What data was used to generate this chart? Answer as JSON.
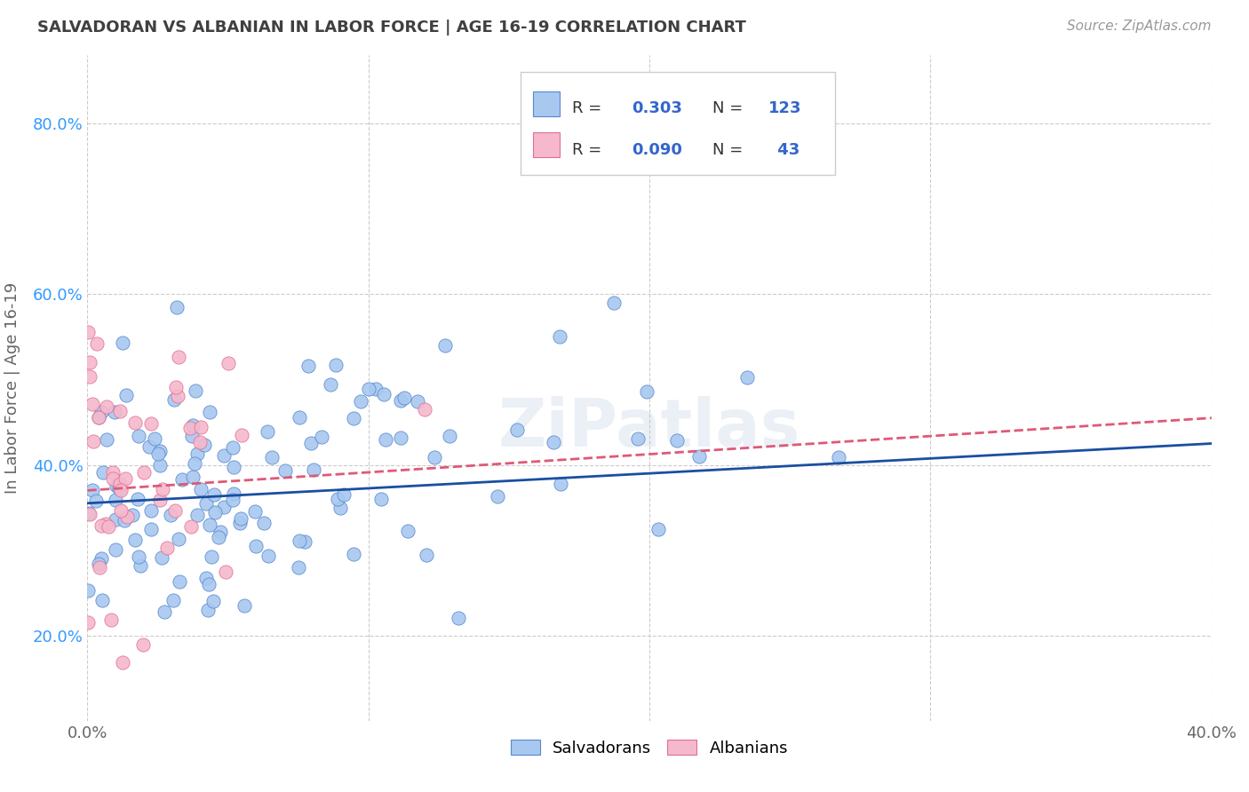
{
  "title": "SALVADORAN VS ALBANIAN IN LABOR FORCE | AGE 16-19 CORRELATION CHART",
  "source": "Source: ZipAtlas.com",
  "ylabel": "In Labor Force | Age 16-19",
  "watermark": "ZiPatlas",
  "xmin": 0.0,
  "xmax": 0.4,
  "ymin": 0.1,
  "ymax": 0.88,
  "yticks": [
    0.2,
    0.4,
    0.6,
    0.8
  ],
  "ytick_labels": [
    "20.0%",
    "40.0%",
    "60.0%",
    "80.0%"
  ],
  "xticks": [
    0.0,
    0.1,
    0.2,
    0.3,
    0.4
  ],
  "xtick_labels": [
    "0.0%",
    "",
    "",
    "",
    "40.0%"
  ],
  "salv_color": "#a8c8f0",
  "salv_edge_color": "#5588cc",
  "salv_line_color": "#1a4fa0",
  "alb_color": "#f5b8cc",
  "alb_edge_color": "#e07090",
  "alb_line_color": "#e05878",
  "background_color": "#ffffff",
  "grid_color": "#cccccc",
  "title_color": "#404040",
  "axis_color": "#666666",
  "legend_text_color": "#3366cc",
  "ytick_color": "#3399ff",
  "salv_R": 0.303,
  "salv_N": 123,
  "alb_R": 0.09,
  "alb_N": 43,
  "salv_line_y0": 0.355,
  "salv_line_y1": 0.425,
  "alb_line_y0": 0.37,
  "alb_line_y1": 0.455
}
